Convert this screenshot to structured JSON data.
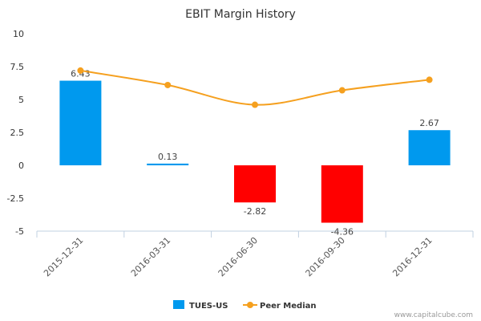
{
  "chart_data": {
    "type": "bar",
    "title": "EBIT Margin History",
    "categories": [
      "2015-12-31",
      "2016-03-31",
      "2016-06-30",
      "2016-09-30",
      "2016-12-31"
    ],
    "series": [
      {
        "name": "TUES-US",
        "type": "bar",
        "values": [
          6.43,
          0.13,
          -2.82,
          -4.36,
          2.67
        ],
        "value_labels": [
          "6.43",
          "0.13",
          "-2.82",
          "-4.36",
          "2.67"
        ],
        "color_positive": "#0099ee",
        "color_negative": "#ff0000"
      },
      {
        "name": "Peer Median",
        "type": "line",
        "values": [
          7.2,
          6.1,
          4.6,
          5.7,
          6.5
        ],
        "color": "#f5a01f"
      }
    ],
    "ylim": [
      -5,
      10
    ],
    "yticks": [
      10,
      7.5,
      5,
      2.5,
      0,
      -2.5,
      -5
    ],
    "ytick_labels": [
      "10",
      "7.5",
      "5",
      "2.5",
      "0",
      "-2.5",
      "-5"
    ],
    "grid": false,
    "legend_position": "bottom-center"
  },
  "credit": "www.capitalcube.com"
}
